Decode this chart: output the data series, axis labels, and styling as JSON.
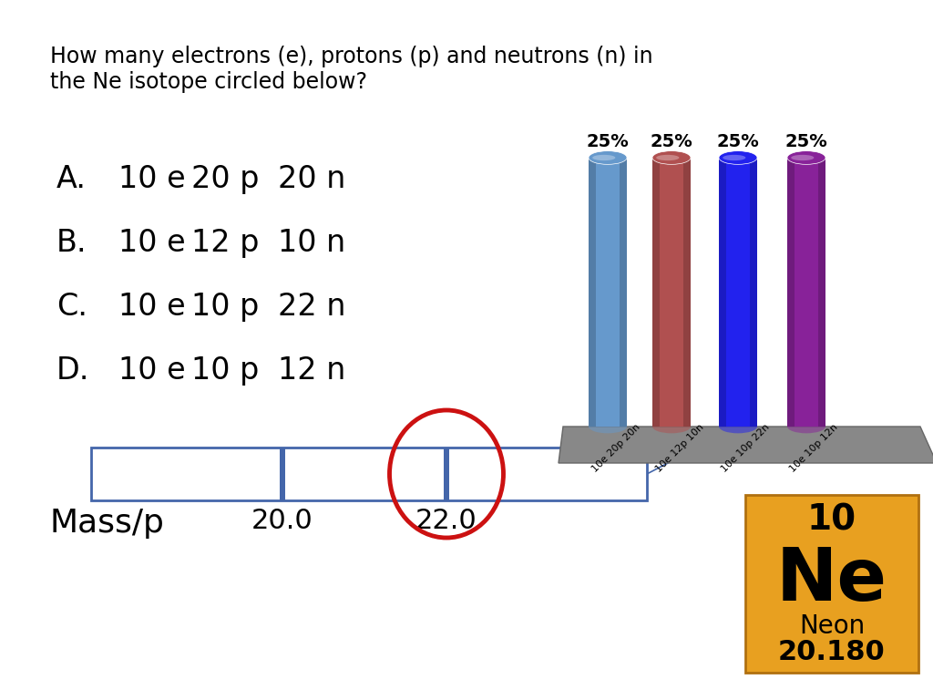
{
  "title_line1": "How many electrons (e), protons (p) and neutrons (n) in",
  "title_line2": "the Ne isotope circled below?",
  "options": [
    [
      "A.",
      "10 e",
      "20 p",
      "20 n"
    ],
    [
      "B.",
      "10 e",
      "12 p",
      "10 n"
    ],
    [
      "C.",
      "10 e",
      "10 p",
      "22 n"
    ],
    [
      "D.",
      "10 e",
      "10 p",
      "12 n"
    ]
  ],
  "bar_colors": [
    "#6699cc",
    "#b05050",
    "#2222ee",
    "#882299"
  ],
  "bar_labels": [
    "25%",
    "25%",
    "25%",
    "25%"
  ],
  "bar_x_labels": [
    "10e 20p 20n",
    "10e 12p 10n",
    "10e 10p 22n",
    "10e 10p 12n"
  ],
  "platform_color": "#888888",
  "platform_edge_color": "#666666",
  "timeline_color": "#4466aa",
  "circle_color": "#cc1111",
  "mass_label": "Mass/p",
  "mass_values": [
    "20.0",
    "22.0"
  ],
  "ne_atomic_number": "10",
  "ne_symbol": "Ne",
  "ne_name": "Neon",
  "ne_mass": "20.180",
  "ne_bg_color": "#e8a020",
  "bg_color": "#ffffff",
  "title_fontsize": 17,
  "option_letter_fontsize": 24,
  "option_text_fontsize": 24,
  "pct_fontsize": 14,
  "mass_label_fontsize": 26,
  "mass_val_fontsize": 22
}
